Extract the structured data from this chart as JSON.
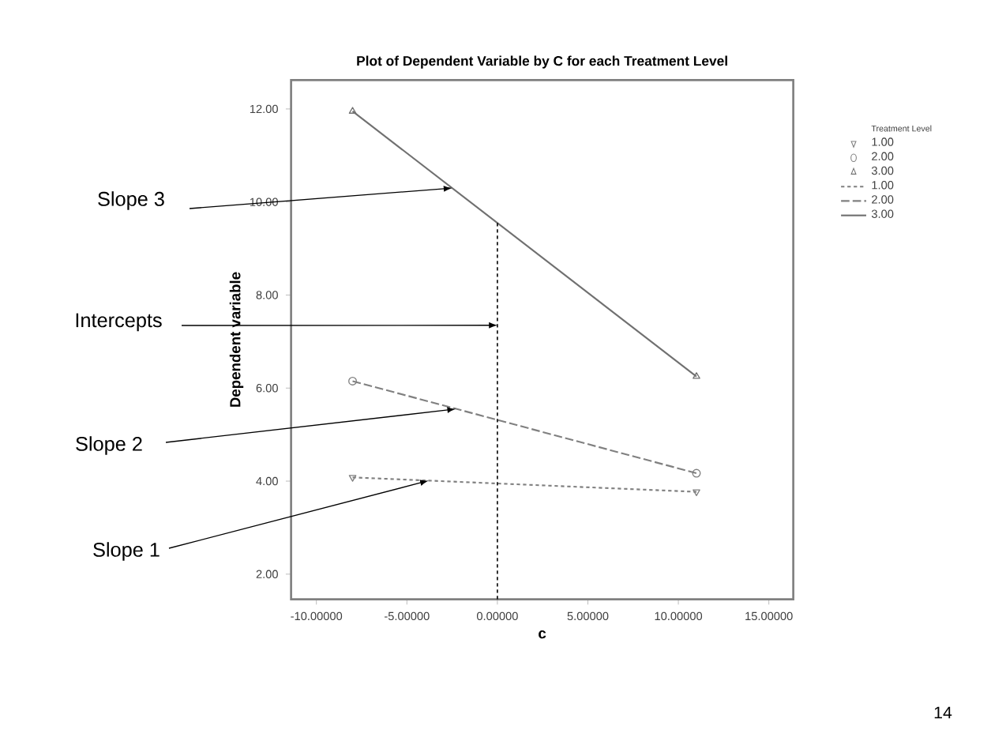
{
  "chart_data": {
    "type": "line",
    "title": "Plot of Dependent Variable by C for each Treatment Level",
    "xlabel": "c",
    "ylabel": "Dependent variable",
    "legend_title": "Treatment Level",
    "legend": "right",
    "grid": false,
    "x": [
      -8,
      11
    ],
    "series": [
      {
        "name": "1.00",
        "color": "#808080",
        "marker": "triangle down",
        "line_style": "dotted",
        "values": [
          4.08,
          3.77
        ]
      },
      {
        "name": "2.00",
        "color": "#808080",
        "marker": "circle",
        "line_style": "dashed",
        "values": [
          6.15,
          4.17
        ]
      },
      {
        "name": "3.00",
        "color": "#707070",
        "marker": "triangle",
        "line_style": "solid",
        "values": [
          11.95,
          6.25
        ]
      }
    ],
    "xlim": [
      -11.4,
      16.35
    ],
    "ylim": [
      1.46,
      12.62
    ],
    "xticks": [
      {
        "value": -10,
        "label": "-10.00000"
      },
      {
        "value": -5,
        "label": "-5.00000"
      },
      {
        "value": 0,
        "label": "0.00000"
      },
      {
        "value": 5,
        "label": "5.00000"
      },
      {
        "value": 10,
        "label": "10.00000"
      },
      {
        "value": 15,
        "label": "15.00000"
      }
    ],
    "yticks": [
      {
        "value": 2,
        "label": "2.00"
      },
      {
        "value": 4,
        "label": "4.00"
      },
      {
        "value": 6,
        "label": "6.00"
      },
      {
        "value": 8,
        "label": "8.00"
      },
      {
        "value": 10,
        "label": "10.00"
      },
      {
        "value": 12,
        "label": "12.00"
      }
    ],
    "ref_lines": [
      {
        "axis": "x",
        "value": 0,
        "line_style": "dotted",
        "color": "#000000"
      }
    ],
    "annotations": [
      {
        "text": "Slope 3",
        "x": -2.5,
        "y": 10.3
      },
      {
        "text": "Intercepts",
        "x": 0,
        "y": 7.35
      },
      {
        "text": "Slope 2",
        "x": -2.3,
        "y": 5.55
      },
      {
        "text": "Slope 1",
        "x": -3.8,
        "y": 4.01
      },
      "14"
    ]
  }
}
